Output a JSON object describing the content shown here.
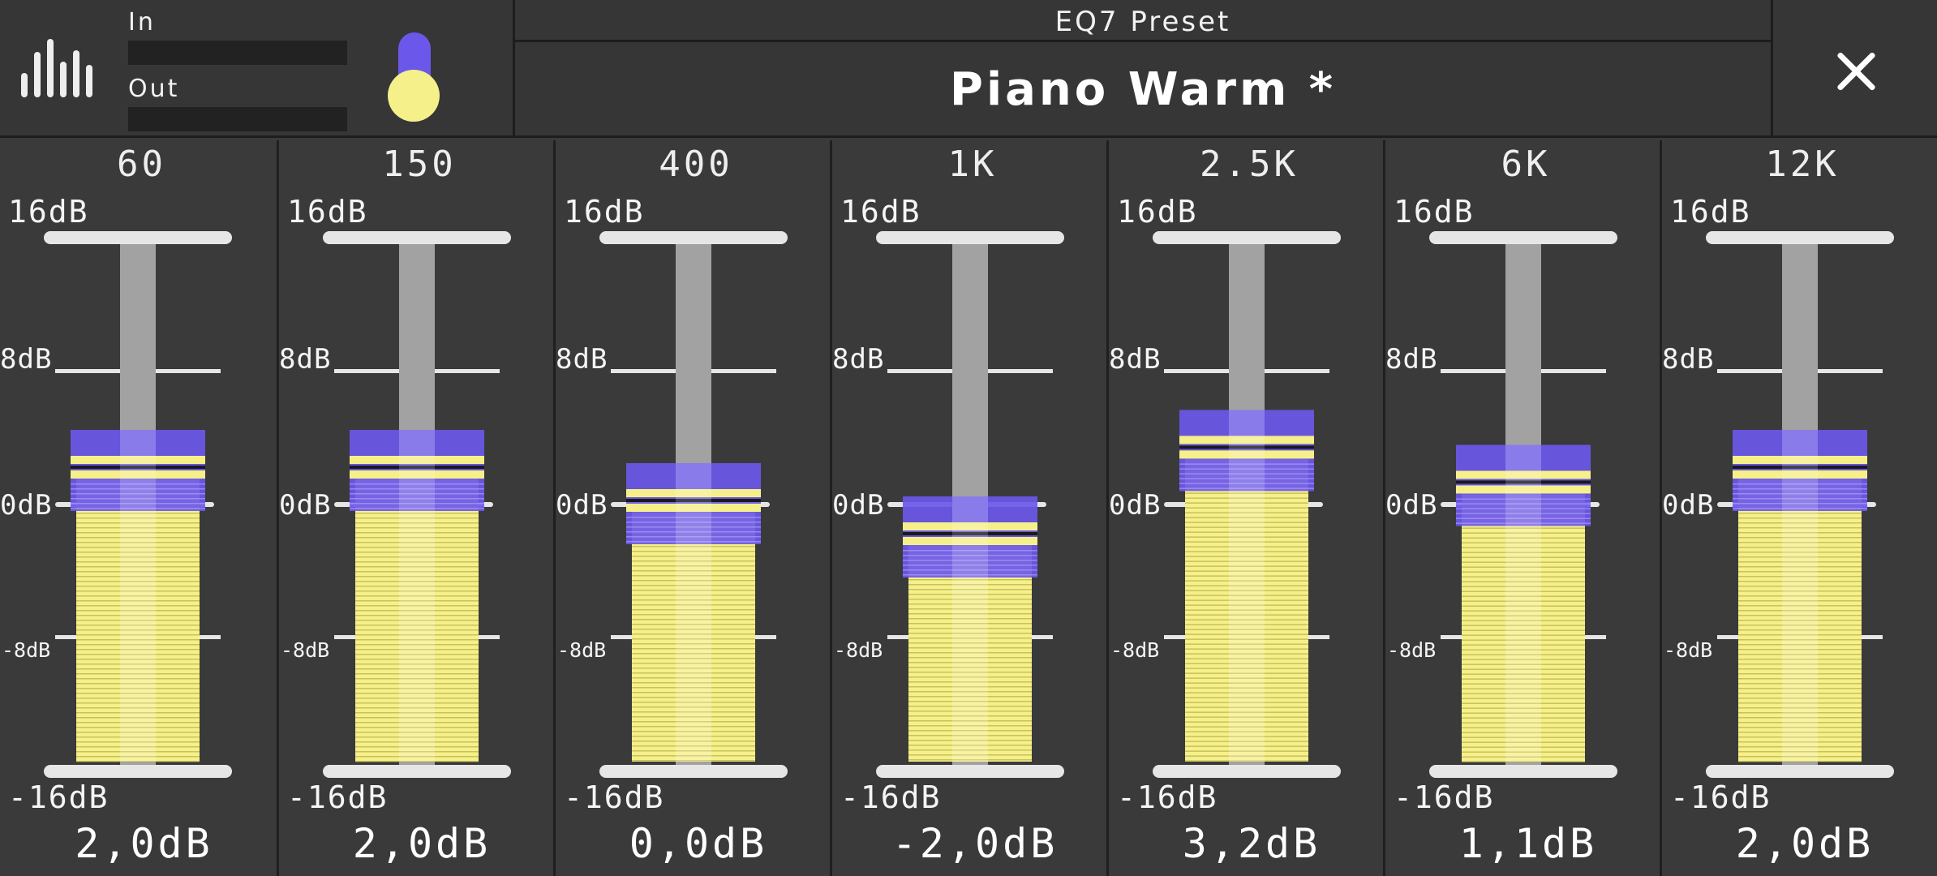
{
  "meters": {
    "in_label": "In",
    "out_label": "Out"
  },
  "preset": {
    "caption": "EQ7 Preset",
    "name": "Piano Warm *"
  },
  "scale_labels": {
    "top": "16dB",
    "upper": "8dB",
    "zero": "0dB",
    "lower": "-8dB",
    "bottom": "-16dB"
  },
  "slider_range_db": [
    -16,
    16
  ],
  "bands": [
    {
      "freq": "60",
      "gain_db": 2.0,
      "value_label": "2,0dB"
    },
    {
      "freq": "150",
      "gain_db": 2.0,
      "value_label": "2,0dB"
    },
    {
      "freq": "400",
      "gain_db": 0.0,
      "value_label": "0,0dB"
    },
    {
      "freq": "1K",
      "gain_db": -2.0,
      "value_label": "-2,0dB"
    },
    {
      "freq": "2.5K",
      "gain_db": 3.2,
      "value_label": "3,2dB"
    },
    {
      "freq": "6K",
      "gain_db": 1.1,
      "value_label": "1,1dB"
    },
    {
      "freq": "12K",
      "gain_db": 2.0,
      "value_label": "2,0dB"
    }
  ],
  "colors": {
    "accent": "#6b58ea",
    "fill": "#f6f08a",
    "background": "#3a3a3a"
  },
  "icons": {
    "logo": "equalizer-bars-icon",
    "close": "close-icon"
  }
}
